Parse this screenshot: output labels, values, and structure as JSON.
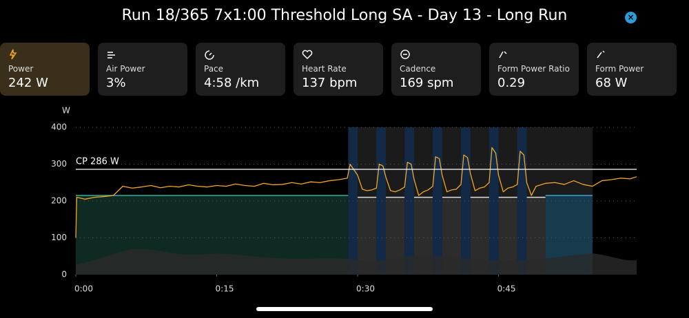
{
  "header": {
    "title": "Run 18/365 7x1:00 Threshold Long SA - Day 13 - Long Run"
  },
  "cards": [
    {
      "label": "Power",
      "value": "242 W"
    },
    {
      "label": "Air Power",
      "value": "3%"
    },
    {
      "label": "Pace",
      "value": "4:58 /km"
    },
    {
      "label": "Heart Rate",
      "value": "137 bpm"
    },
    {
      "label": "Cadence",
      "value": "169 spm"
    },
    {
      "label": "Form Power Ratio",
      "value": "0.29"
    },
    {
      "label": "Form Power",
      "value": "68 W"
    }
  ],
  "chart_data": {
    "type": "line",
    "y_unit": "W",
    "color": "#f5a623",
    "grid": true,
    "xlim": [
      0,
      59.7
    ],
    "ylim": [
      0,
      400
    ],
    "yticks": [
      0,
      100,
      200,
      300,
      400
    ],
    "xticks": [
      {
        "value": 0,
        "label": "0:00"
      },
      {
        "value": 15,
        "label": "0:15"
      },
      {
        "value": 30,
        "label": "0:30"
      },
      {
        "value": 45,
        "label": "0:45"
      }
    ],
    "cp": {
      "value": 286,
      "label": "CP 286 W"
    },
    "highlight": {
      "start": 29,
      "end": 55,
      "color": "#1b1b1b"
    },
    "intervals": [
      {
        "start": 0,
        "end": 29,
        "target": 215,
        "fill": "#0f2a23",
        "line": "#2bb39a"
      },
      {
        "start": 30,
        "end": 32,
        "target": 210,
        "fill": "#2c2c2c",
        "line": "#dddddd"
      },
      {
        "start": 33,
        "end": 35,
        "target": 210,
        "fill": "#2c2c2c",
        "line": "#dddddd"
      },
      {
        "start": 36,
        "end": 38,
        "target": 210,
        "fill": "#2c2c2c",
        "line": "#dddddd"
      },
      {
        "start": 39,
        "end": 41,
        "target": 210,
        "fill": "#2c2c2c",
        "line": "#dddddd"
      },
      {
        "start": 42,
        "end": 44,
        "target": 210,
        "fill": "#2c2c2c",
        "line": "#dddddd"
      },
      {
        "start": 45,
        "end": 47,
        "target": 210,
        "fill": "#2c2c2c",
        "line": "#dddddd"
      },
      {
        "start": 48,
        "end": 50,
        "target": 210,
        "fill": "#2c2c2c",
        "line": "#dddddd"
      },
      {
        "start": 50,
        "end": 55,
        "target": 215,
        "fill": "#173b4c",
        "line": "#3aa8d8"
      }
    ],
    "rep_color": "#132a47",
    "reps": [
      {
        "start": 29,
        "end": 30
      },
      {
        "start": 32,
        "end": 33
      },
      {
        "start": 35,
        "end": 36
      },
      {
        "start": 38,
        "end": 39
      },
      {
        "start": 41,
        "end": 42
      },
      {
        "start": 44,
        "end": 45
      },
      {
        "start": 47,
        "end": 48
      }
    ],
    "x": [
      0,
      0.1,
      1,
      2,
      3,
      4,
      5,
      6,
      7,
      8,
      9,
      10,
      11,
      12,
      13,
      14,
      15,
      16,
      17,
      18,
      19,
      20,
      21,
      22,
      23,
      24,
      25,
      26,
      27,
      28,
      28.9,
      29.2,
      29.6,
      30,
      30.5,
      31,
      31.5,
      32,
      32.3,
      32.7,
      33,
      33.5,
      34,
      34.5,
      35,
      35.3,
      35.7,
      36,
      36.5,
      37,
      37.5,
      38,
      38.3,
      38.7,
      39,
      39.5,
      40,
      40.5,
      41,
      41.3,
      41.7,
      42,
      42.5,
      43,
      43.5,
      44,
      44.3,
      44.7,
      45,
      45.5,
      46,
      46.5,
      47,
      47.3,
      47.7,
      48,
      48.5,
      49,
      50,
      51,
      52,
      53,
      54,
      55,
      56,
      57,
      58,
      59,
      59.7
    ],
    "values": [
      100,
      210,
      205,
      210,
      212,
      215,
      240,
      235,
      238,
      242,
      236,
      240,
      238,
      244,
      240,
      238,
      242,
      240,
      246,
      242,
      240,
      248,
      244,
      245,
      250,
      246,
      252,
      250,
      255,
      258,
      262,
      300,
      285,
      270,
      232,
      228,
      230,
      235,
      300,
      295,
      265,
      228,
      225,
      230,
      238,
      305,
      300,
      260,
      215,
      225,
      230,
      240,
      320,
      315,
      270,
      225,
      230,
      232,
      245,
      325,
      318,
      275,
      228,
      235,
      238,
      250,
      345,
      330,
      270,
      225,
      235,
      238,
      245,
      335,
      325,
      250,
      215,
      240,
      248,
      250,
      245,
      255,
      245,
      240,
      255,
      258,
      262,
      260,
      266
    ]
  }
}
